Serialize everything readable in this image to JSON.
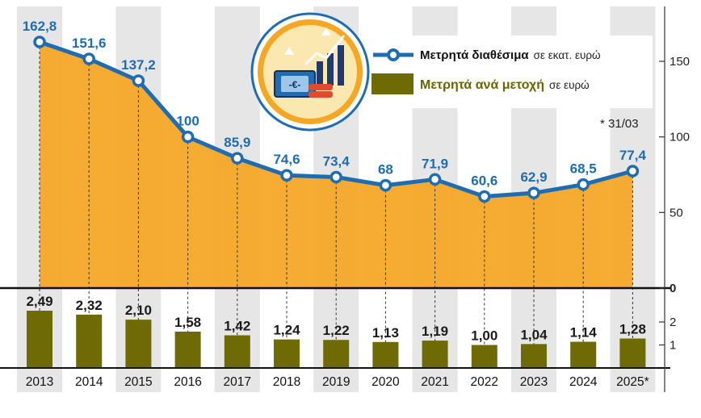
{
  "colors": {
    "line": "#1f6db0",
    "area": "#f5a623",
    "bar": "#6e6a06",
    "band": "#e6e6e6"
  },
  "legend": {
    "line_name": "Μετρητά διαθέσιμα",
    "line_unit": "σε εκατ. ευρώ",
    "bar_name": "Μετρητά ανά μετοχή",
    "bar_unit": "σε ευρώ"
  },
  "footnote": "* 31/03",
  "icon": "money-chart-icon",
  "chart_data": [
    {
      "type": "area",
      "categories": [
        "2013",
        "2014",
        "2015",
        "2016",
        "2017",
        "2018",
        "2019",
        "2020",
        "2021",
        "2022",
        "2023",
        "2024",
        "2025*"
      ],
      "series": [
        {
          "name": "Μετρητά διαθέσιμα",
          "values": [
            162.8,
            151.6,
            137.2,
            100,
            85.9,
            74.6,
            73.4,
            68,
            71.9,
            60.6,
            62.9,
            68.5,
            77.4
          ],
          "labels": [
            "162,8",
            "151,6",
            "137,2",
            "100",
            "85,9",
            "74,6",
            "73,4",
            "68",
            "71,9",
            "60,6",
            "62,9",
            "68,5",
            "77,4"
          ]
        }
      ],
      "ylim": [
        0,
        200
      ],
      "yticks": [
        "0",
        "50",
        "100",
        "150"
      ],
      "grid": false
    },
    {
      "type": "bar",
      "categories": [
        "2013",
        "2014",
        "2015",
        "2016",
        "2017",
        "2018",
        "2019",
        "2020",
        "2021",
        "2022",
        "2023",
        "2024",
        "2025*"
      ],
      "series": [
        {
          "name": "Μετρητά ανά μετοχή",
          "values": [
            2.49,
            2.32,
            2.1,
            1.58,
            1.42,
            1.24,
            1.22,
            1.13,
            1.19,
            1.0,
            1.04,
            1.14,
            1.28
          ],
          "labels": [
            "2,49",
            "2,32",
            "2,10",
            "1,58",
            "1,42",
            "1,24",
            "1,22",
            "1,13",
            "1,19",
            "1,00",
            "1,04",
            "1,14",
            "1,28"
          ]
        }
      ],
      "ylim": [
        0,
        3
      ],
      "yticks": [
        "1",
        "2"
      ],
      "grid": false
    }
  ]
}
